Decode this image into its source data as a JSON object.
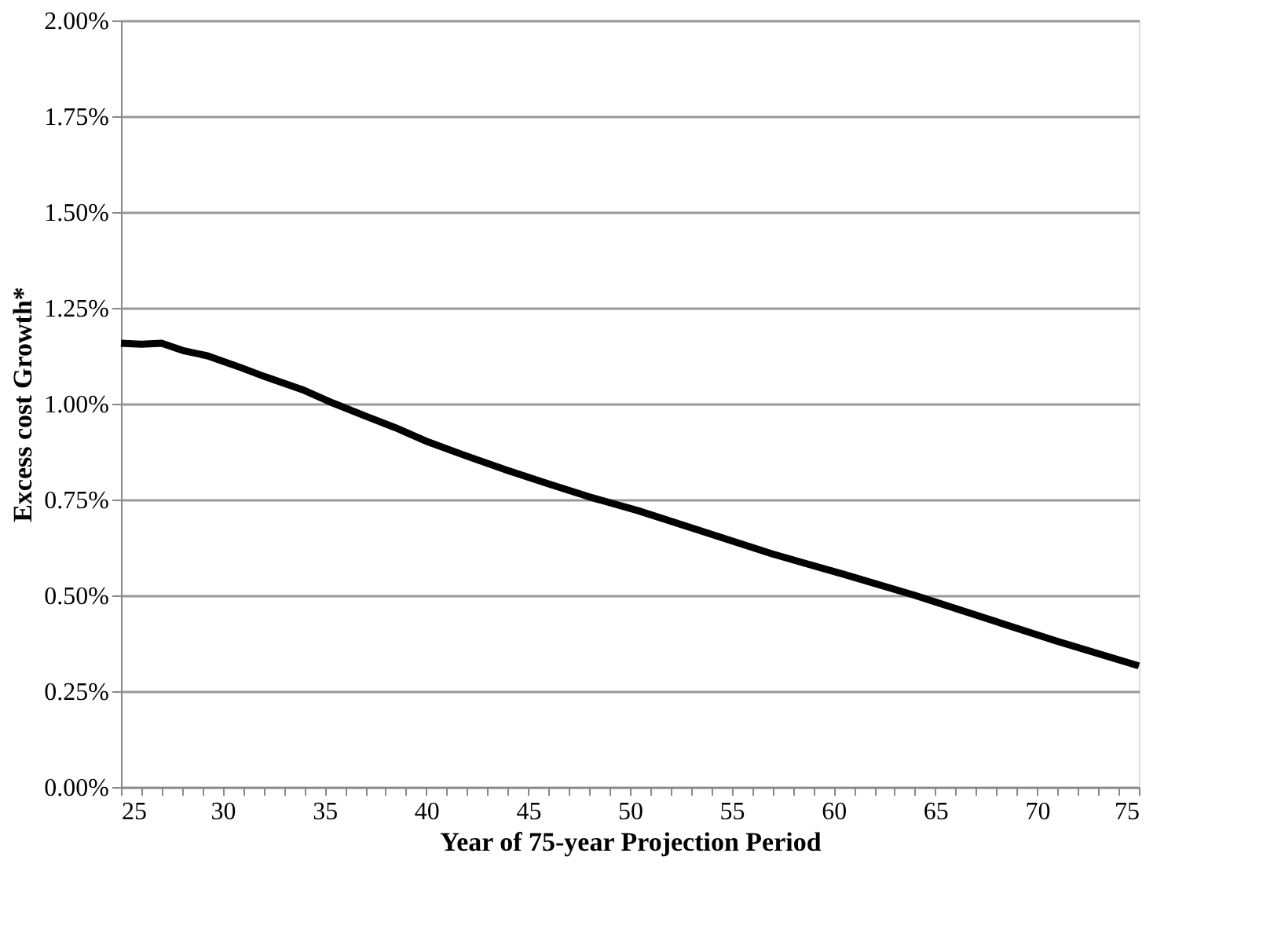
{
  "chart_data": {
    "type": "line",
    "xlabel": "Year of 75-year Projection Period",
    "ylabel": "Excess cost Growth*",
    "series": [
      {
        "color": "#000000",
        "x": [
          25,
          26,
          27,
          28.1,
          29.25,
          30.9,
          32.1,
          33.9,
          35.4,
          37.0,
          38.5,
          40.1,
          41.9,
          44.0,
          46.0,
          48.0,
          50.4,
          53.5,
          57.0,
          60.5,
          64.0,
          67.5,
          71.0,
          75
        ],
        "values": [
          1.158,
          1.155,
          1.158,
          1.138,
          1.125,
          1.094,
          1.07,
          1.037,
          1.002,
          0.968,
          0.937,
          0.9,
          0.865,
          0.826,
          0.791,
          0.757,
          0.721,
          0.668,
          0.608,
          0.555,
          0.5,
          0.44,
          0.38,
          0.316
        ]
      }
    ],
    "xlim": [
      25,
      75
    ],
    "xticks": [
      25,
      {
        "value": 26,
        "label": null
      },
      {
        "value": 27,
        "label": null
      },
      {
        "value": 28,
        "label": null
      },
      {
        "value": 29,
        "label": null
      },
      30,
      {
        "value": 31,
        "label": null
      },
      {
        "value": 32,
        "label": null
      },
      {
        "value": 33,
        "label": null
      },
      {
        "value": 34,
        "label": null
      },
      35,
      {
        "value": 36,
        "label": null
      },
      {
        "value": 37,
        "label": null
      },
      {
        "value": 38,
        "label": null
      },
      {
        "value": 39,
        "label": null
      },
      40,
      {
        "value": 41,
        "label": null
      },
      {
        "value": 42,
        "label": null
      },
      {
        "value": 43,
        "label": null
      },
      {
        "value": 44,
        "label": null
      },
      45,
      {
        "value": 46,
        "label": null
      },
      {
        "value": 47,
        "label": null
      },
      {
        "value": 48,
        "label": null
      },
      {
        "value": 49,
        "label": null
      },
      50,
      {
        "value": 51,
        "label": null
      },
      {
        "value": 52,
        "label": null
      },
      {
        "value": 53,
        "label": null
      },
      {
        "value": 54,
        "label": null
      },
      55,
      {
        "value": 56,
        "label": null
      },
      {
        "value": 57,
        "label": null
      },
      {
        "value": 58,
        "label": null
      },
      {
        "value": 59,
        "label": null
      },
      60,
      {
        "value": 61,
        "label": null
      },
      {
        "value": 62,
        "label": null
      },
      {
        "value": 63,
        "label": null
      },
      {
        "value": 64,
        "label": null
      },
      65,
      {
        "value": 66,
        "label": null
      },
      {
        "value": 67,
        "label": null
      },
      {
        "value": 68,
        "label": null
      },
      {
        "value": 69,
        "label": null
      },
      70,
      {
        "value": 71,
        "label": null
      },
      {
        "value": 72,
        "label": null
      },
      {
        "value": 73,
        "label": null
      },
      {
        "value": 74,
        "label": null
      },
      75
    ],
    "ylim": [
      0,
      2
    ],
    "yticks": [
      {
        "value": 0,
        "label": "0.00%"
      },
      {
        "value": 0.25,
        "label": "0.25%"
      },
      {
        "value": 0.5,
        "label": "0.50%"
      },
      {
        "value": 0.75,
        "label": "0.75%"
      },
      {
        "value": 1,
        "label": "1.00%"
      },
      {
        "value": 1.25,
        "label": "1.25%"
      },
      {
        "value": 1.5,
        "label": "1.50%"
      },
      {
        "value": 1.75,
        "label": "1.75%"
      },
      {
        "value": 2,
        "label": "2.00%"
      }
    ],
    "grid": "y",
    "legend": false,
    "marker": "none",
    "line_style": "solid"
  }
}
